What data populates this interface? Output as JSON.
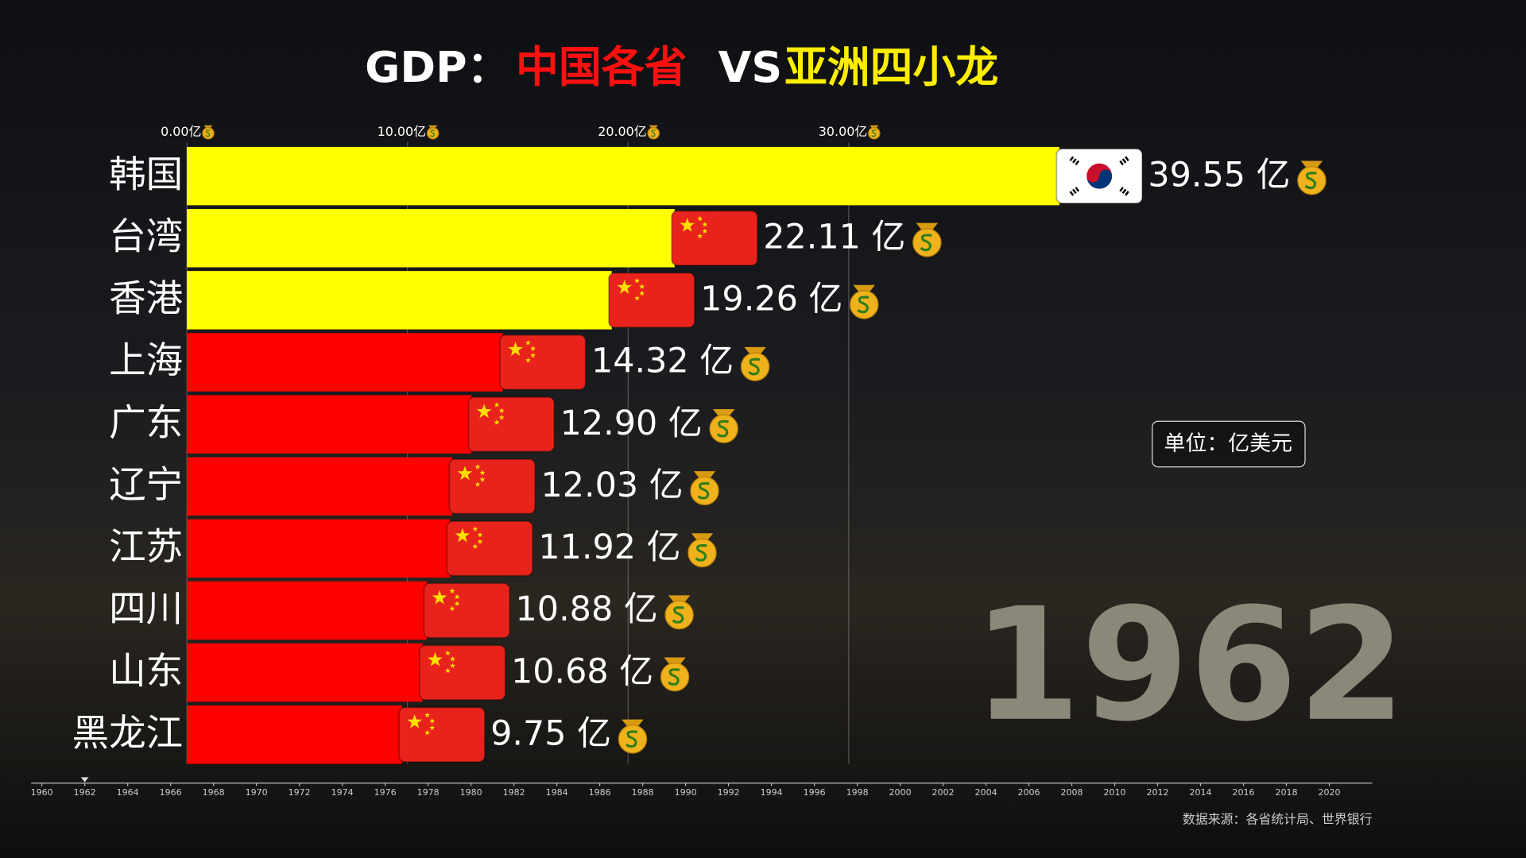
{
  "chart_data": {
    "type": "bar",
    "title_parts": [
      "GDP：",
      "中国各省",
      "VS",
      "亚洲四小龙"
    ],
    "categories": [
      "韩国",
      "台湾",
      "香港",
      "上海",
      "广东",
      "辽宁",
      "江苏",
      "四川",
      "山东",
      "黑龙江"
    ],
    "values": [
      39.55,
      22.11,
      19.26,
      14.32,
      12.9,
      12.03,
      11.92,
      10.88,
      10.68,
      9.75
    ],
    "value_labels": [
      "39.55 亿",
      "22.11 亿",
      "19.26 亿",
      "14.32 亿",
      "12.90 亿",
      "12.03 亿",
      "11.92 亿",
      "10.88 亿",
      "10.68 亿",
      "9.75 亿"
    ],
    "colors": [
      "#ffff00",
      "#ffff00",
      "#ffff00",
      "#ff0000",
      "#ff0000",
      "#ff0000",
      "#ff0000",
      "#ff0000",
      "#ff0000",
      "#ff0000"
    ],
    "flag_colors": [
      "#ffffff",
      "#e8231c",
      "#e8231c",
      "#e8231c",
      "#e8231c",
      "#e8231c",
      "#e8231c",
      "#e8231c",
      "#e8231c",
      "#e8231c"
    ],
    "xlim": [
      0,
      50
    ],
    "xticks": [
      {
        "value": 0,
        "label": "0.00亿"
      },
      {
        "value": 10,
        "label": "10.00亿"
      },
      {
        "value": 20,
        "label": "20.00亿"
      },
      {
        "value": 30,
        "label": "30.00亿"
      }
    ],
    "grid": true,
    "unit_note": "单位：亿美元",
    "year": 1962,
    "timeline_lim": [
      1959.5,
      2022
    ],
    "timeline_ticks": [
      1960,
      1962,
      1964,
      1966,
      1968,
      1970,
      1972,
      1974,
      1976,
      1978,
      1980,
      1982,
      1984,
      1986,
      1988,
      1990,
      1992,
      1994,
      1996,
      1998,
      2000,
      2002,
      2004,
      2006,
      2008,
      2010,
      2012,
      2014,
      2016,
      2018,
      2020
    ],
    "source": "数据来源：各省统计局、世界银行"
  }
}
